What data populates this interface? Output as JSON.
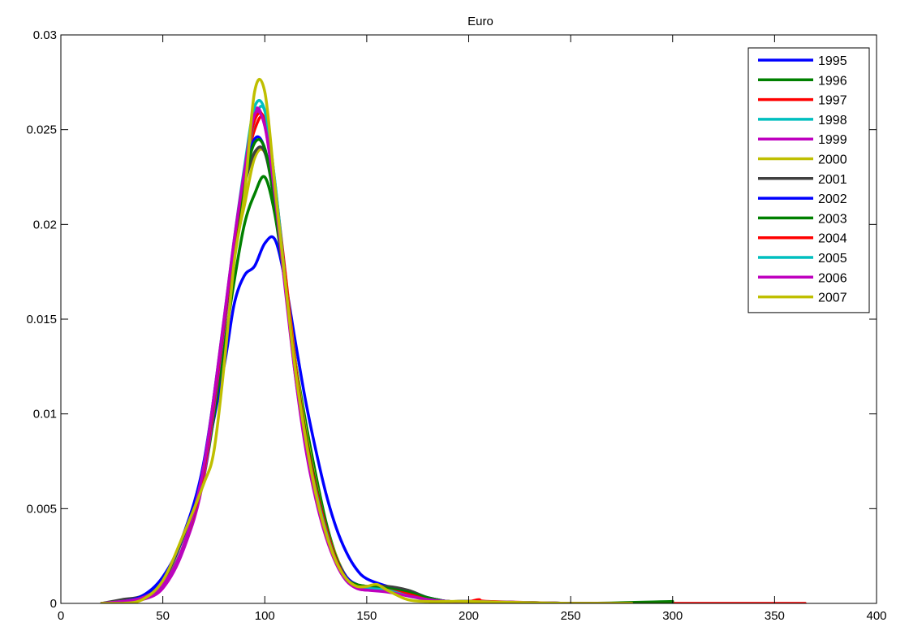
{
  "chart_data": {
    "type": "line",
    "title": "Euro",
    "xlabel": "",
    "ylabel": "",
    "xlim": [
      0,
      400
    ],
    "ylim": [
      0,
      0.03
    ],
    "xticks": [
      0,
      50,
      100,
      150,
      200,
      250,
      300,
      350,
      400
    ],
    "yticks": [
      0,
      0.005,
      0.01,
      0.015,
      0.02,
      0.025,
      0.03
    ],
    "xtick_labels": [
      "0",
      "50",
      "100",
      "150",
      "200",
      "250",
      "300",
      "350",
      "400"
    ],
    "ytick_labels": [
      "0",
      "0.005",
      "0.01",
      "0.015",
      "0.02",
      "0.025",
      "0.03"
    ],
    "grid": false,
    "legend": "top-right",
    "series": [
      {
        "name": "1995",
        "color": "#0000ff",
        "x": [
          20,
          30,
          40,
          50,
          60,
          70,
          80,
          85,
          90,
          95,
          100,
          105,
          110,
          115,
          120,
          125,
          130,
          135,
          140,
          145,
          150,
          160,
          170,
          180,
          190,
          200,
          250,
          300
        ],
        "y": [
          0,
          0.0001,
          0.0004,
          0.0014,
          0.0035,
          0.0072,
          0.0125,
          0.0158,
          0.0173,
          0.0178,
          0.019,
          0.0192,
          0.017,
          0.0138,
          0.0107,
          0.0081,
          0.0058,
          0.004,
          0.0027,
          0.0018,
          0.0013,
          0.0009,
          0.0006,
          0.0003,
          0.0001,
          0.0001,
          0,
          0
        ]
      },
      {
        "name": "1996",
        "color": "#008000",
        "x": [
          20,
          30,
          40,
          50,
          60,
          70,
          80,
          85,
          90,
          95,
          100,
          105,
          110,
          115,
          120,
          125,
          130,
          135,
          140,
          145,
          150,
          160,
          170,
          180,
          190,
          200,
          250,
          300
        ],
        "y": [
          0,
          0.0001,
          0.0003,
          0.001,
          0.003,
          0.0066,
          0.0135,
          0.017,
          0.02,
          0.0216,
          0.0225,
          0.0205,
          0.0168,
          0.0128,
          0.0096,
          0.0068,
          0.0043,
          0.0025,
          0.0014,
          0.0009,
          0.0008,
          0.0008,
          0.0007,
          0.0003,
          0.0001,
          0.0001,
          0,
          0.0001
        ]
      },
      {
        "name": "1997",
        "color": "#ff0000",
        "x": [
          20,
          30,
          40,
          50,
          60,
          70,
          80,
          85,
          90,
          95,
          100,
          105,
          110,
          115,
          120,
          125,
          130,
          135,
          140,
          145,
          150,
          160,
          170,
          180,
          190,
          200,
          250,
          300,
          350,
          365
        ],
        "y": [
          0,
          0.0001,
          0.0003,
          0.001,
          0.003,
          0.0068,
          0.0145,
          0.0185,
          0.0225,
          0.025,
          0.0255,
          0.022,
          0.0175,
          0.0128,
          0.009,
          0.0063,
          0.004,
          0.0024,
          0.0013,
          0.0009,
          0.0008,
          0.0008,
          0.0006,
          0.0002,
          0.0001,
          0.0001,
          0,
          0,
          0,
          0
        ]
      },
      {
        "name": "1998",
        "color": "#00bfbf",
        "x": [
          20,
          30,
          40,
          50,
          60,
          70,
          80,
          85,
          90,
          95,
          100,
          105,
          110,
          115,
          120,
          125,
          130,
          135,
          140,
          145,
          150,
          160,
          170,
          180,
          190,
          200,
          250
        ],
        "y": [
          0,
          0.0001,
          0.0003,
          0.001,
          0.003,
          0.0068,
          0.0145,
          0.0185,
          0.0225,
          0.0255,
          0.026,
          0.0222,
          0.0172,
          0.0125,
          0.0088,
          0.0061,
          0.004,
          0.0024,
          0.0013,
          0.0009,
          0.0008,
          0.0007,
          0.0005,
          0.0002,
          0.0001,
          0.0001,
          0
        ]
      },
      {
        "name": "1999",
        "color": "#bf00bf",
        "x": [
          20,
          30,
          40,
          50,
          60,
          70,
          80,
          85,
          90,
          95,
          100,
          105,
          110,
          115,
          120,
          125,
          130,
          135,
          140,
          145,
          150,
          160,
          170,
          180,
          190,
          200,
          250
        ],
        "y": [
          0,
          0.0001,
          0.0002,
          0.0008,
          0.0028,
          0.0066,
          0.0145,
          0.0188,
          0.0228,
          0.026,
          0.0252,
          0.0215,
          0.0168,
          0.012,
          0.0082,
          0.0055,
          0.0035,
          0.0021,
          0.0012,
          0.0008,
          0.0007,
          0.0007,
          0.0005,
          0.0002,
          0.0001,
          0.0001,
          0
        ]
      },
      {
        "name": "2000",
        "color": "#bfbf00",
        "x": [
          20,
          30,
          40,
          50,
          60,
          70,
          80,
          85,
          90,
          95,
          100,
          105,
          110,
          115,
          120,
          125,
          130,
          135,
          140,
          145,
          150,
          160,
          170,
          180,
          190,
          200,
          250
        ],
        "y": [
          0,
          0.0001,
          0.0003,
          0.001,
          0.003,
          0.007,
          0.0148,
          0.0185,
          0.021,
          0.0235,
          0.0238,
          0.0215,
          0.0172,
          0.0128,
          0.0092,
          0.0064,
          0.0041,
          0.0025,
          0.0014,
          0.001,
          0.0009,
          0.0008,
          0.0006,
          0.0003,
          0.0001,
          0.0001,
          0
        ]
      },
      {
        "name": "2001",
        "color": "#404040",
        "x": [
          20,
          30,
          40,
          50,
          60,
          70,
          80,
          85,
          90,
          95,
          100,
          105,
          110,
          115,
          120,
          125,
          130,
          135,
          140,
          145,
          150,
          160,
          170,
          180,
          190,
          200,
          250
        ],
        "y": [
          0,
          0.0002,
          0.0004,
          0.0012,
          0.0035,
          0.0072,
          0.0148,
          0.0188,
          0.022,
          0.0238,
          0.0238,
          0.021,
          0.0168,
          0.0125,
          0.0088,
          0.0061,
          0.004,
          0.0024,
          0.0014,
          0.001,
          0.0009,
          0.0009,
          0.0007,
          0.0003,
          0.0001,
          0.0001,
          0
        ]
      },
      {
        "name": "2002",
        "color": "#0000ff",
        "x": [
          20,
          30,
          40,
          50,
          60,
          70,
          80,
          85,
          90,
          95,
          100,
          105,
          110,
          115,
          120,
          125,
          130,
          135,
          140,
          145,
          150,
          160,
          170,
          180,
          190,
          200,
          250
        ],
        "y": [
          0,
          0.0001,
          0.0004,
          0.0013,
          0.0036,
          0.0074,
          0.0148,
          0.0188,
          0.0222,
          0.0245,
          0.024,
          0.0212,
          0.0168,
          0.0125,
          0.0089,
          0.0062,
          0.004,
          0.0024,
          0.0014,
          0.001,
          0.0009,
          0.0008,
          0.0006,
          0.0003,
          0.0001,
          0.0001,
          0
        ]
      },
      {
        "name": "2003",
        "color": "#008000",
        "x": [
          20,
          30,
          40,
          50,
          60,
          70,
          80,
          85,
          90,
          95,
          100,
          105,
          110,
          115,
          120,
          125,
          130,
          135,
          140,
          145,
          150,
          160,
          170,
          180,
          190,
          200,
          250,
          300
        ],
        "y": [
          0,
          0.0001,
          0.0003,
          0.001,
          0.003,
          0.007,
          0.0148,
          0.0188,
          0.0222,
          0.0243,
          0.024,
          0.021,
          0.0168,
          0.0125,
          0.009,
          0.0063,
          0.0041,
          0.0024,
          0.0013,
          0.001,
          0.0009,
          0.0008,
          0.0006,
          0.0003,
          0.0001,
          0.0001,
          0,
          0
        ]
      },
      {
        "name": "2004",
        "color": "#ff0000",
        "x": [
          20,
          30,
          40,
          50,
          60,
          70,
          80,
          85,
          90,
          95,
          100,
          105,
          110,
          115,
          120,
          125,
          130,
          135,
          140,
          145,
          150,
          160,
          170,
          180,
          190,
          200,
          205,
          210,
          250
        ],
        "y": [
          0,
          0.0001,
          0.0003,
          0.001,
          0.003,
          0.007,
          0.0148,
          0.019,
          0.0228,
          0.0255,
          0.0255,
          0.022,
          0.0172,
          0.0125,
          0.0088,
          0.0061,
          0.004,
          0.0023,
          0.0013,
          0.0009,
          0.0008,
          0.0007,
          0.0005,
          0.0002,
          0.0001,
          0.0001,
          0.0002,
          0.0001,
          0
        ]
      },
      {
        "name": "2005",
        "color": "#00bfbf",
        "x": [
          20,
          30,
          40,
          50,
          60,
          70,
          80,
          85,
          90,
          95,
          100,
          105,
          110,
          115,
          120,
          125,
          130,
          135,
          140,
          145,
          150,
          160,
          170,
          180,
          190,
          200,
          250
        ],
        "y": [
          0,
          0.0001,
          0.0003,
          0.001,
          0.003,
          0.0072,
          0.015,
          0.0192,
          0.023,
          0.0262,
          0.026,
          0.0222,
          0.017,
          0.0122,
          0.0086,
          0.0059,
          0.0038,
          0.0022,
          0.0012,
          0.0009,
          0.0008,
          0.0007,
          0.0004,
          0.0002,
          0.0001,
          0.0001,
          0
        ]
      },
      {
        "name": "2006",
        "color": "#bf00bf",
        "x": [
          20,
          30,
          40,
          50,
          60,
          70,
          80,
          85,
          90,
          95,
          100,
          105,
          110,
          115,
          120,
          125,
          130,
          135,
          140,
          145,
          150,
          160,
          170,
          180,
          190,
          200,
          250,
          270
        ],
        "y": [
          0,
          0.0001,
          0.0003,
          0.001,
          0.003,
          0.0072,
          0.015,
          0.0192,
          0.0228,
          0.0258,
          0.0252,
          0.0215,
          0.0166,
          0.012,
          0.0084,
          0.0057,
          0.0036,
          0.0021,
          0.0012,
          0.0008,
          0.0007,
          0.0006,
          0.0004,
          0.0002,
          0.0001,
          0.0001,
          0,
          0
        ]
      },
      {
        "name": "2007",
        "color": "#bfbf00",
        "x": [
          20,
          30,
          40,
          50,
          60,
          70,
          75,
          80,
          85,
          90,
          95,
          100,
          105,
          110,
          115,
          120,
          125,
          130,
          135,
          140,
          145,
          150,
          155,
          160,
          170,
          180,
          190,
          200,
          250,
          280
        ],
        "y": [
          0,
          0,
          0.0002,
          0.0012,
          0.0036,
          0.0063,
          0.008,
          0.0125,
          0.018,
          0.0215,
          0.027,
          0.027,
          0.022,
          0.017,
          0.0123,
          0.0087,
          0.0058,
          0.0037,
          0.0022,
          0.0013,
          0.0009,
          0.0009,
          0.001,
          0.0007,
          0.0002,
          0.0001,
          0.0001,
          0.0001,
          0,
          0
        ]
      }
    ]
  }
}
